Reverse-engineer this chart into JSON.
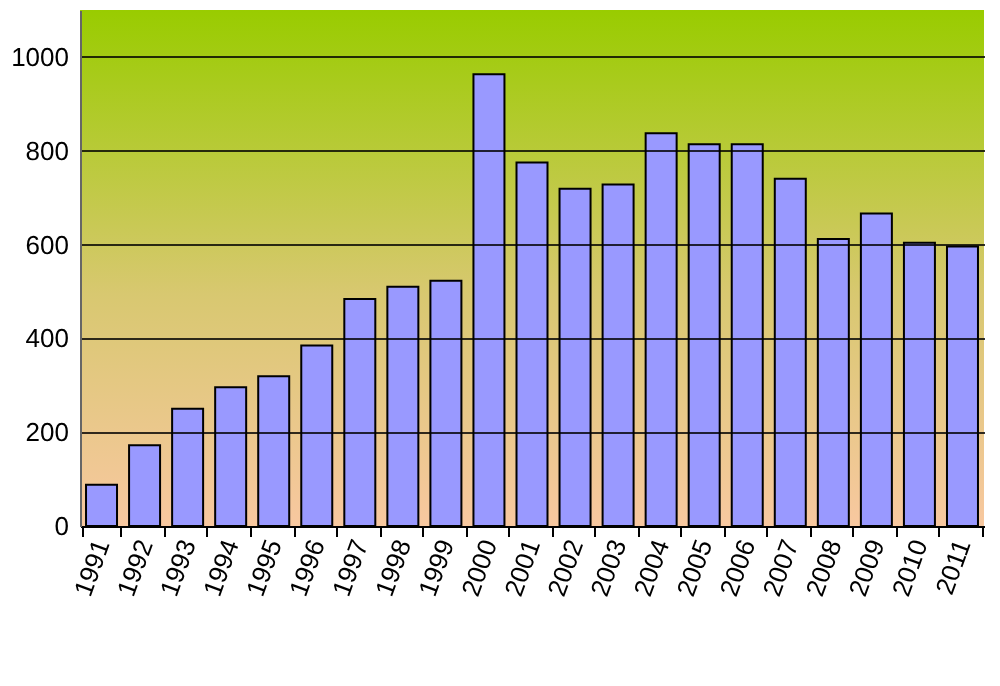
{
  "chart_data": {
    "type": "bar",
    "categories": [
      "1991",
      "1992",
      "1993",
      "1994",
      "1995",
      "1996",
      "1997",
      "1998",
      "1999",
      "2000",
      "2001",
      "2002",
      "2003",
      "2004",
      "2005",
      "2006",
      "2007",
      "2008",
      "2009",
      "2010",
      "2011"
    ],
    "values": [
      88,
      172,
      250,
      296,
      319,
      385,
      484,
      510,
      523,
      963,
      775,
      719,
      728,
      837,
      814,
      814,
      740,
      612,
      666,
      604,
      596
    ],
    "color": "#9999ff",
    "ylim": [
      0,
      1100
    ],
    "yticks": [
      0,
      200,
      400,
      600,
      800,
      1000
    ],
    "grid": "y"
  }
}
